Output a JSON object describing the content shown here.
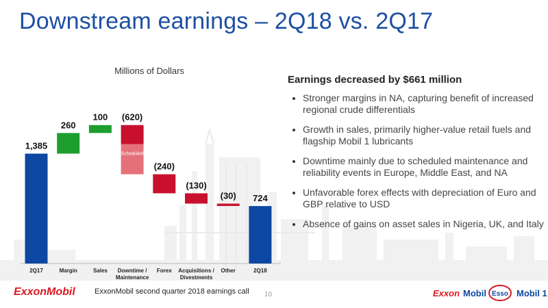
{
  "slide": {
    "title": "Downstream earnings – 2Q18 vs. 2Q17",
    "footer_text": "ExxonMobil second quarter 2018 earnings call",
    "page_number": "10"
  },
  "brands": {
    "left_logo": "ExxonMobil",
    "right_logos": [
      "Exxon",
      "Mobil",
      "Esso",
      "Mobil 1"
    ]
  },
  "summary": {
    "heading": "Earnings decreased by $661 million",
    "bullets": [
      "Stronger margins in NA, capturing benefit of increased regional crude differentials",
      "Growth in sales, primarily higher-value retail fuels and flagship Mobil 1 lubricants",
      "Downtime mainly due to scheduled maintenance and reliability events in Europe, Middle East, and NA",
      "Unfavorable forex effects with depreciation of Euro and GBP relative to USD",
      "Absence of gains on asset sales in Nigeria, UK, and Italy"
    ]
  },
  "chart_data": {
    "type": "bar",
    "subtype": "waterfall",
    "title": "Millions of Dollars",
    "categories": [
      "2Q17",
      "Margin",
      "Sales",
      "Downtime / Maintenance",
      "Forex",
      "Acquisitions / Divestments",
      "Other",
      "2Q18"
    ],
    "category_lines": [
      [
        "2Q17"
      ],
      [
        "Margin"
      ],
      [
        "Sales"
      ],
      [
        "Downtime /",
        "Maintenance"
      ],
      [
        "Forex"
      ],
      [
        "Acquisitions /",
        "Divestments"
      ],
      [
        "Other"
      ],
      [
        "2Q18"
      ]
    ],
    "values": [
      1385,
      260,
      100,
      -620,
      -240,
      -130,
      -30,
      724
    ],
    "value_labels": [
      "1,385",
      "260",
      "100",
      "(620)",
      "(240)",
      "(130)",
      "(30)",
      "724"
    ],
    "kinds": [
      "total",
      "delta",
      "delta",
      "delta",
      "delta",
      "delta",
      "delta",
      "total"
    ],
    "scheduled_portion": {
      "category": "Downtime / Maintenance",
      "value": -380,
      "label": "Scheduled"
    },
    "ylim": [
      0,
      2200
    ],
    "colors": {
      "total": "#0d47a1",
      "increase": "#1e9e2e",
      "decrease": "#c8102e",
      "scheduled": "#e4717a"
    },
    "legend": "none",
    "grid": false
  }
}
